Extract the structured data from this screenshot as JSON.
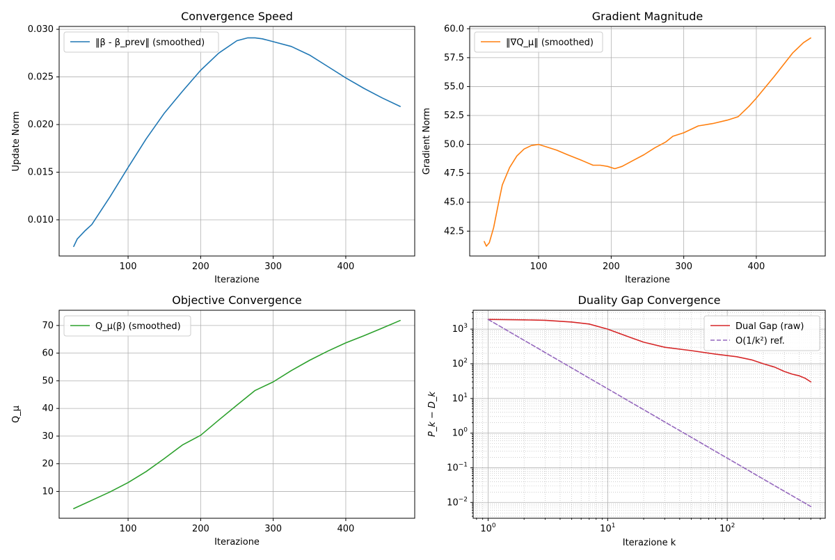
{
  "figure": {
    "suptitle": "",
    "bg": "#ffffff"
  },
  "chart_data": [
    {
      "id": "convergence-speed",
      "type": "line",
      "title": "Convergence Speed",
      "xlabel": "Iterazione",
      "ylabel": "Update Norm",
      "xscale": "linear",
      "yscale": "linear",
      "xlim": [
        5,
        495
      ],
      "ylim": [
        0.0062,
        0.0303
      ],
      "xticks": [
        100,
        200,
        300,
        400
      ],
      "xtick_labels": [
        "100",
        "200",
        "300",
        "400"
      ],
      "yticks": [
        0.01,
        0.015,
        0.02,
        0.025,
        0.03
      ],
      "ytick_labels": [
        "0.010",
        "0.015",
        "0.020",
        "0.025",
        "0.030"
      ],
      "grid": true,
      "legend": "upper left",
      "series": [
        {
          "name": "‖β - β_prev‖ (smoothed)",
          "color": "#1f77b4",
          "dash": "solid",
          "x": [
            25,
            30,
            40,
            50,
            75,
            100,
            125,
            150,
            175,
            200,
            225,
            250,
            265,
            275,
            285,
            300,
            325,
            350,
            375,
            400,
            425,
            450,
            475
          ],
          "y": [
            0.0072,
            0.008,
            0.0088,
            0.0095,
            0.0124,
            0.0155,
            0.0185,
            0.0212,
            0.0235,
            0.0257,
            0.0275,
            0.0288,
            0.0291,
            0.0291,
            0.029,
            0.0287,
            0.0282,
            0.0273,
            0.0261,
            0.0249,
            0.0238,
            0.0228,
            0.0219
          ]
        }
      ]
    },
    {
      "id": "gradient-magnitude",
      "type": "line",
      "title": "Gradient Magnitude",
      "xlabel": "Iterazione",
      "ylabel": "Gradient Norm",
      "xscale": "linear",
      "yscale": "linear",
      "xlim": [
        5,
        495
      ],
      "ylim": [
        40.35,
        60.2
      ],
      "xticks": [
        100,
        200,
        300,
        400
      ],
      "xtick_labels": [
        "100",
        "200",
        "300",
        "400"
      ],
      "yticks": [
        42.5,
        45.0,
        47.5,
        50.0,
        52.5,
        55.0,
        57.5,
        60.0
      ],
      "ytick_labels": [
        "42.5",
        "45.0",
        "47.5",
        "50.0",
        "52.5",
        "55.0",
        "57.5",
        "60.0"
      ],
      "grid": true,
      "legend": "upper left",
      "series": [
        {
          "name": "‖∇Q_μ‖ (smoothed)",
          "color": "#ff7f0e",
          "dash": "solid",
          "x": [
            25,
            28,
            32,
            38,
            45,
            50,
            60,
            70,
            80,
            90,
            100,
            110,
            125,
            140,
            160,
            175,
            185,
            195,
            205,
            215,
            230,
            245,
            260,
            275,
            285,
            300,
            320,
            340,
            360,
            375,
            390,
            400,
            425,
            450,
            465,
            475
          ],
          "y": [
            41.6,
            41.2,
            41.5,
            42.8,
            45.0,
            46.5,
            48.0,
            49.0,
            49.6,
            49.9,
            50.0,
            49.8,
            49.5,
            49.1,
            48.6,
            48.2,
            48.2,
            48.1,
            47.9,
            48.1,
            48.6,
            49.1,
            49.7,
            50.2,
            50.7,
            51.0,
            51.6,
            51.8,
            52.1,
            52.4,
            53.3,
            54.0,
            55.9,
            57.9,
            58.8,
            59.2
          ]
        }
      ]
    },
    {
      "id": "objective-convergence",
      "type": "line",
      "title": "Objective Convergence",
      "xlabel": "Iterazione",
      "ylabel": "Q_μ",
      "xscale": "linear",
      "yscale": "linear",
      "xlim": [
        5,
        495
      ],
      "ylim": [
        0.3,
        75.5
      ],
      "xticks": [
        100,
        200,
        300,
        400
      ],
      "xtick_labels": [
        "100",
        "200",
        "300",
        "400"
      ],
      "yticks": [
        10,
        20,
        30,
        40,
        50,
        60,
        70
      ],
      "ytick_labels": [
        "10",
        "20",
        "30",
        "40",
        "50",
        "60",
        "70"
      ],
      "grid": true,
      "legend": "upper left",
      "series": [
        {
          "name": "Q_μ(β) (smoothed)",
          "color": "#2ca02c",
          "dash": "solid",
          "x": [
            25,
            50,
            75,
            100,
            125,
            150,
            175,
            200,
            225,
            250,
            275,
            300,
            325,
            350,
            375,
            400,
            425,
            450,
            475
          ],
          "y": [
            3.8,
            6.8,
            9.8,
            13.2,
            17.2,
            21.9,
            26.8,
            30.3,
            35.8,
            41.2,
            46.5,
            49.6,
            53.7,
            57.4,
            60.7,
            63.7,
            66.3,
            69.0,
            71.8
          ]
        }
      ]
    },
    {
      "id": "duality-gap-convergence",
      "type": "line",
      "title": "Duality Gap Convergence",
      "xlabel": "Iterazione k",
      "ylabel": "P_k − D_k",
      "xscale": "log",
      "yscale": "log",
      "xlim": [
        0.75,
        660
      ],
      "ylim": [
        0.0035,
        3500
      ],
      "xticks": [
        1,
        10,
        100
      ],
      "xtick_labels": [
        [
          "10",
          "0"
        ],
        [
          "10",
          "1"
        ],
        [
          "10",
          "2"
        ]
      ],
      "yticks": [
        0.01,
        0.1,
        1,
        10,
        100,
        1000
      ],
      "ytick_labels": [
        [
          "10",
          "−2"
        ],
        [
          "10",
          "−1"
        ],
        [
          "10",
          "0"
        ],
        [
          "10",
          "1"
        ],
        [
          "10",
          "2"
        ],
        [
          "10",
          "3"
        ]
      ],
      "grid": true,
      "legend": "upper right",
      "series": [
        {
          "name": "Dual Gap (raw)",
          "color": "#d62728",
          "dash": "solid",
          "x": [
            1,
            2,
            3,
            5,
            7,
            10,
            15,
            20,
            30,
            50,
            80,
            120,
            160,
            200,
            250,
            300,
            350,
            400,
            450,
            500
          ],
          "y": [
            1900,
            1850,
            1800,
            1600,
            1400,
            1000,
            600,
            420,
            300,
            240,
            190,
            160,
            130,
            100,
            80,
            60,
            50,
            45,
            38,
            30
          ]
        },
        {
          "name": "O(1/k²) ref.",
          "color": "#9467bd",
          "dash": "dashed",
          "x": [
            1,
            2,
            5,
            10,
            20,
            50,
            100,
            200,
            500
          ],
          "y": [
            1900,
            475,
            76,
            19,
            4.75,
            0.76,
            0.19,
            0.0475,
            0.0076
          ]
        }
      ]
    }
  ]
}
